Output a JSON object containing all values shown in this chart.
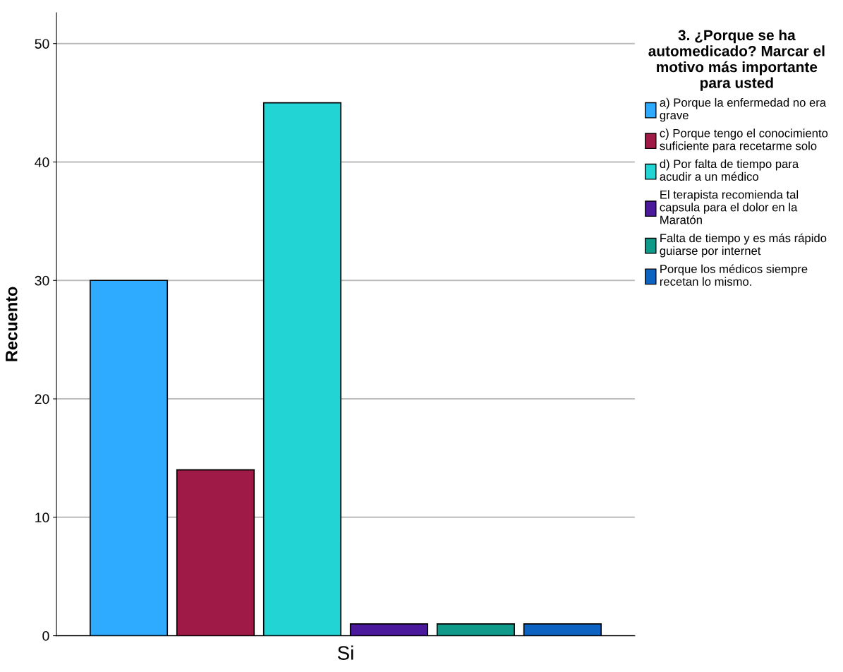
{
  "chart_data": {
    "type": "bar",
    "ylabel": "Recuento",
    "legend_title": "3. ¿Porque se ha automedicado? Marcar el motivo más importante para usted",
    "categories": [
      "Si"
    ],
    "series": [
      {
        "name": "a) Porque la enfermedad no era grave",
        "color": "#2eaaff",
        "values": [
          30
        ]
      },
      {
        "name": "c) Porque tengo el conocimiento suficiente para recetarme solo",
        "color": "#a01a48",
        "values": [
          14
        ]
      },
      {
        "name": "d) Por falta de tiempo para acudir a un médico",
        "color": "#22d4d4",
        "values": [
          45
        ]
      },
      {
        "name": "El terapista recomienda tal capsula para el dolor en la Maratón",
        "color": "#4b1a9c",
        "values": [
          1
        ]
      },
      {
        "name": "Falta de tiempo y es más rápido guiarse por internet",
        "color": "#0f9a8a",
        "values": [
          1
        ]
      },
      {
        "name": "Porque los médicos siempre recetan lo mismo.",
        "color": "#0d63c2",
        "values": [
          1
        ]
      }
    ],
    "ylim": [
      0,
      52.6
    ],
    "yticks": [
      0,
      10,
      20,
      30,
      40,
      50
    ],
    "grid": "y",
    "legend": "right"
  }
}
